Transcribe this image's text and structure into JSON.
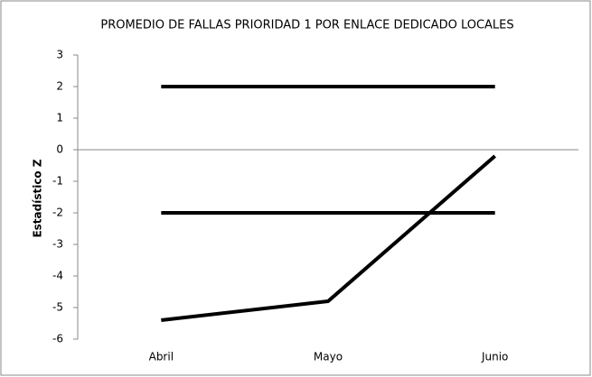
{
  "chart_data": {
    "type": "line",
    "title": "PROMEDIO DE FALLAS PRIORIDAD 1 POR ENLACE DEDICADO LOCALES",
    "y_label": "Estadístico Z",
    "categories": [
      "Abril",
      "Mayo",
      "Junio"
    ],
    "series": [
      {
        "color": "#000000",
        "values": [
          2,
          2,
          2
        ]
      },
      {
        "color": "#000000",
        "values": [
          -2,
          -2,
          -2
        ]
      },
      {
        "color": "#000000",
        "values": [
          -5.4,
          -4.8,
          -0.2
        ]
      }
    ],
    "ylim": [
      -6,
      3
    ],
    "yticks": [
      3,
      2,
      1,
      0,
      -1,
      -2,
      -3,
      -4,
      -5,
      -6
    ],
    "grid": false
  }
}
